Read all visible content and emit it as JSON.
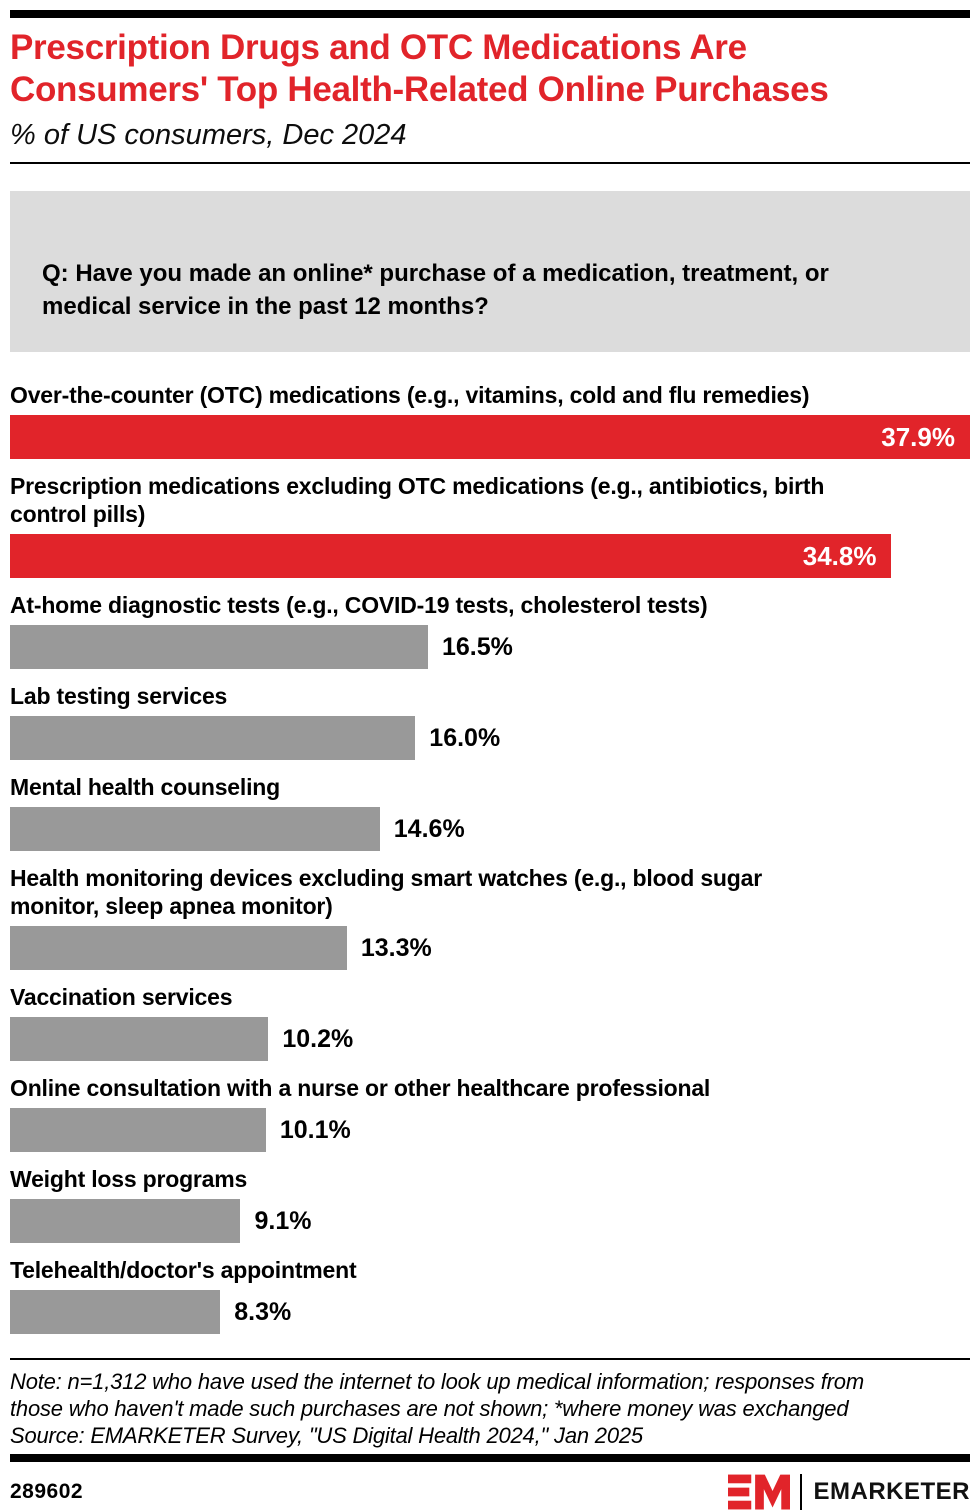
{
  "header": {
    "title": "Prescription Drugs and OTC Medications Are Consumers' Top Health-Related Online Purchases",
    "title_lines": [
      "Prescription Drugs and OTC Medications Are",
      "Consumers' Top Health-Related Online Purchases"
    ],
    "subtitle": "% of US consumers, Dec 2024"
  },
  "question": {
    "lines": [
      "Q: Have you made an online* purchase of a medication, treatment, or",
      "medical service in the past 12 months?"
    ]
  },
  "chart_data": {
    "type": "bar",
    "orientation": "horizontal",
    "title": "Prescription Drugs and OTC Medications Are Consumers' Top Health-Related Online Purchases",
    "subtitle": "% of US consumers, Dec 2024",
    "unit": "%",
    "axis_max": 37.9,
    "grid": false,
    "legend": "none",
    "categories": [
      "Over-the-counter (OTC) medications (e.g., vitamins, cold and flu remedies)",
      "Prescription medications excluding OTC medications (e.g., antibiotics, birth control pills)",
      "At-home diagnostic tests (e.g., COVID-19 tests, cholesterol tests)",
      "Lab testing services",
      "Mental health counseling",
      "Health monitoring devices excluding smart watches (e.g., blood sugar monitor, sleep apnea monitor)",
      "Vaccination services",
      "Online consultation with a nurse or other healthcare professional",
      "Weight loss programs",
      "Telehealth/doctor's appointment"
    ],
    "category_lines": [
      [
        "Over-the-counter (OTC) medications (e.g., vitamins, cold and flu remedies)"
      ],
      [
        "Prescription medications excluding OTC medications (e.g., antibiotics, birth",
        "control pills)"
      ],
      [
        "At-home diagnostic tests (e.g., COVID-19 tests, cholesterol tests)"
      ],
      [
        "Lab testing services"
      ],
      [
        "Mental health counseling"
      ],
      [
        "Health monitoring devices excluding smart watches (e.g., blood sugar",
        "monitor, sleep apnea monitor)"
      ],
      [
        "Vaccination services"
      ],
      [
        "Online consultation with a nurse or other healthcare professional"
      ],
      [
        "Weight loss programs"
      ],
      [
        "Telehealth/doctor's appointment"
      ]
    ],
    "values": [
      37.9,
      34.8,
      16.5,
      16.0,
      14.6,
      13.3,
      10.2,
      10.1,
      9.1,
      8.3
    ],
    "value_labels": [
      "37.9%",
      "34.8%",
      "16.5%",
      "16.0%",
      "14.6%",
      "13.3%",
      "10.2%",
      "10.1%",
      "9.1%",
      "8.3%"
    ],
    "bar_colors": [
      "red",
      "red",
      "gray",
      "gray",
      "gray",
      "gray",
      "gray",
      "gray",
      "gray",
      "gray"
    ],
    "value_position": [
      "inside",
      "inside",
      "outside",
      "outside",
      "outside",
      "outside",
      "outside",
      "outside",
      "outside",
      "outside"
    ]
  },
  "colors": {
    "accent_red": "#E1242A",
    "bar_gray": "#999999",
    "question_bg": "#dcdcdc",
    "text": "#000000",
    "value_inside_text": "#ffffff"
  },
  "footer": {
    "note_lines": [
      "Note: n=1,312 who have used the internet to look up medical information; responses from",
      "those who haven't made such purchases are not shown; *where money was exchanged"
    ],
    "source": "Source: EMARKETER Survey, \"US Digital Health 2024,\" Jan 2025",
    "chart_id": "289602",
    "brand": "EMARKETER",
    "logo": "em-logo"
  }
}
